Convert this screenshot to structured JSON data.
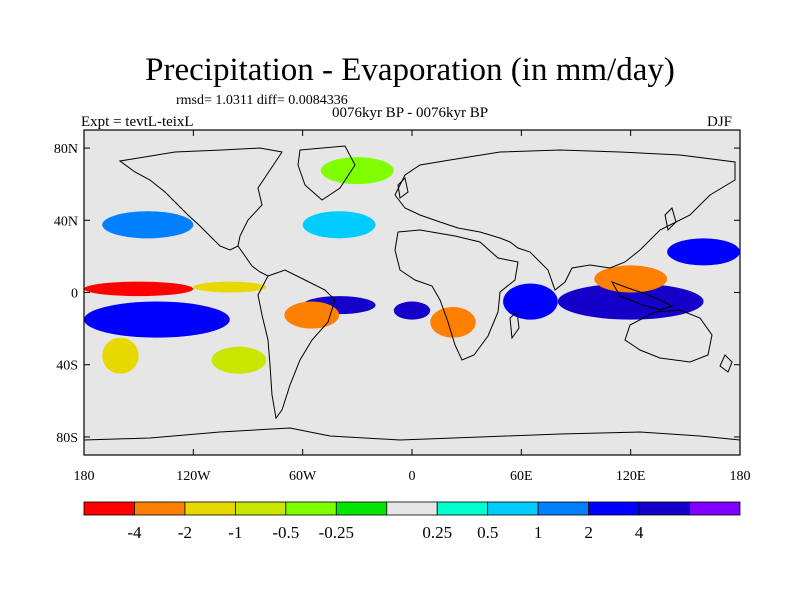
{
  "title": "Precipitation - Evaporation (in mm/day)",
  "stats": "rmsd= 1.0311 diff= 0.0084336",
  "period": "0076kyr BP - 0076kyr BP",
  "experiment": "Expt = tevtL-teixL",
  "season": "DJF",
  "map": {
    "projection": "cylindrical equidistant",
    "lon_range": [
      -180,
      180
    ],
    "lat_range": [
      -90,
      90
    ],
    "background_color": "#e6e6e6",
    "lat_ticks": [
      {
        "value": 80,
        "label": "80N"
      },
      {
        "value": 40,
        "label": "40N"
      },
      {
        "value": 0,
        "label": "0"
      },
      {
        "value": -40,
        "label": "40S"
      },
      {
        "value": -80,
        "label": "80S"
      }
    ],
    "lon_ticks": [
      {
        "value": -180,
        "label": "180"
      },
      {
        "value": -120,
        "label": "120W"
      },
      {
        "value": -60,
        "label": "60W"
      },
      {
        "value": 0,
        "label": "0"
      },
      {
        "value": 60,
        "label": "60E"
      },
      {
        "value": 120,
        "label": "120E"
      },
      {
        "value": 180,
        "label": "180"
      }
    ]
  },
  "colorbar": {
    "colors": [
      "#ff0000",
      "#ff8000",
      "#e6d800",
      "#c8e600",
      "#80ff00",
      "#00e600",
      "#e6e6e6",
      "#00ffcc",
      "#00ccff",
      "#0080ff",
      "#0000ff",
      "#1400c8",
      "#8000ff"
    ],
    "labels": [
      "-4",
      "-2",
      "-1",
      "-0.5",
      "-0.25",
      "0.25",
      "0.5",
      "1",
      "2",
      "4"
    ],
    "label_boundary_index": [
      1,
      2,
      3,
      4,
      5,
      7,
      8,
      9,
      10,
      11
    ]
  },
  "chart_data": {
    "type": "heatmap",
    "title": "Precipitation - Evaporation (in mm/day)",
    "variable_units": "mm/day",
    "levels": [
      -4,
      -2,
      -1,
      -0.5,
      -0.25,
      0.25,
      0.5,
      1,
      2,
      4
    ],
    "xlabels": [
      "180",
      "120W",
      "60W",
      "0",
      "60E",
      "120E",
      "180"
    ],
    "ylabels": [
      "80N",
      "40N",
      "0",
      "40S",
      "80S"
    ],
    "regions": [
      {
        "lon": [
          -180,
          -120
        ],
        "lat": [
          -2,
          6
        ],
        "level": "-4"
      },
      {
        "lon": [
          -120,
          -80
        ],
        "lat": [
          0,
          6
        ],
        "level": "-1"
      },
      {
        "lon": [
          -180,
          -100
        ],
        "lat": [
          -25,
          -5
        ],
        "level": "2"
      },
      {
        "lon": [
          -60,
          -20
        ],
        "lat": [
          -12,
          -2
        ],
        "level": "4"
      },
      {
        "lon": [
          -70,
          -40
        ],
        "lat": [
          -20,
          -5
        ],
        "level": "-2"
      },
      {
        "lon": [
          -10,
          10
        ],
        "lat": [
          -15,
          -5
        ],
        "level": "4"
      },
      {
        "lon": [
          10,
          35
        ],
        "lat": [
          -25,
          -8
        ],
        "level": "-2"
      },
      {
        "lon": [
          50,
          80
        ],
        "lat": [
          -15,
          5
        ],
        "level": "2"
      },
      {
        "lon": [
          80,
          160
        ],
        "lat": [
          -15,
          5
        ],
        "level": "4"
      },
      {
        "lon": [
          100,
          140
        ],
        "lat": [
          0,
          15
        ],
        "level": "-2"
      },
      {
        "lon": [
          140,
          180
        ],
        "lat": [
          15,
          30
        ],
        "level": "2"
      },
      {
        "lon": [
          -170,
          -120
        ],
        "lat": [
          30,
          45
        ],
        "level": "1"
      },
      {
        "lon": [
          -60,
          -20
        ],
        "lat": [
          30,
          45
        ],
        "level": "0.5"
      },
      {
        "lon": [
          -170,
          -150
        ],
        "lat": [
          -45,
          -25
        ],
        "level": "-1"
      },
      {
        "lon": [
          -110,
          -80
        ],
        "lat": [
          -45,
          -30
        ],
        "level": "-0.5"
      },
      {
        "lon": [
          -50,
          -10
        ],
        "lat": [
          60,
          75
        ],
        "level": "-0.25"
      }
    ]
  }
}
